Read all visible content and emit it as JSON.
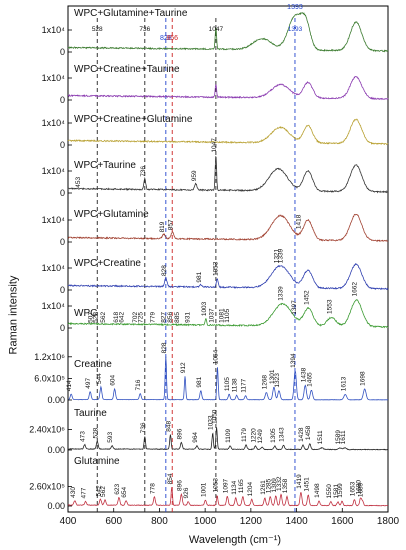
{
  "figure": {
    "xlabel": "Wavelength (cm⁻¹)",
    "ylabel": "Raman intensity"
  },
  "chart_data": {
    "type": "line",
    "xlabel": "Wavelength (cm⁻¹)",
    "ylabel": "Raman intensity",
    "xlim": [
      400,
      1800
    ],
    "xticks": [
      "400",
      "600",
      "800",
      "1000",
      "1200",
      "1400",
      "1600",
      "1800"
    ],
    "grid": false,
    "reference_lines": [
      {
        "x": 528,
        "label": "528",
        "color": "#222222"
      },
      {
        "x": 736,
        "label": "736",
        "color": "#222222"
      },
      {
        "x": 828,
        "label": "828",
        "color": "#2244cc"
      },
      {
        "x": 856,
        "label": "856",
        "color": "#cc2222"
      },
      {
        "x": 1047,
        "label": "1047",
        "color": "#222222"
      },
      {
        "x": 1393,
        "label": "1393",
        "color": "#2244cc"
      }
    ],
    "series": [
      {
        "name": "WPC+Glutamine+Taurine",
        "color": "#3a7a2e",
        "yticks": [
          {
            "label": "0",
            "v": 0
          },
          {
            "label": "1x10⁴",
            "v": 1
          }
        ],
        "peaks": [
          [
            1047,
            1.0,
            3
          ],
          [
            1393,
            1.5,
            30
          ],
          [
            1250,
            0.5,
            40
          ],
          [
            1440,
            1.1,
            20
          ],
          [
            1660,
            1.3,
            25
          ]
        ],
        "labels": [
          {
            "x": 528,
            "text": "528"
          },
          {
            "x": 736,
            "text": "736"
          },
          {
            "x": 1047,
            "text": "1047"
          },
          {
            "x": 1393,
            "text": "1393"
          }
        ]
      },
      {
        "name": "WPC+Creatine+Taurine",
        "color": "#8a3ab0",
        "yticks": [
          {
            "label": "0",
            "v": 0
          },
          {
            "label": "1x10⁴",
            "v": 1
          }
        ],
        "peaks": [
          [
            1047,
            0.6,
            3
          ],
          [
            1330,
            0.6,
            40
          ],
          [
            1450,
            0.7,
            20
          ],
          [
            1660,
            1.0,
            25
          ]
        ],
        "labels": []
      },
      {
        "name": "WPC+Creatine+Glutamine",
        "color": "#b8a030",
        "yticks": [
          {
            "label": "0",
            "v": 0
          },
          {
            "label": "1x10⁴",
            "v": 1
          }
        ],
        "peaks": [
          [
            1330,
            0.7,
            40
          ],
          [
            1450,
            0.8,
            20
          ],
          [
            1660,
            1.1,
            25
          ]
        ],
        "labels": []
      },
      {
        "name": "WPC+Taurine",
        "color": "#333333",
        "yticks": [
          {
            "label": "0",
            "v": 0
          },
          {
            "label": "1x10⁴",
            "v": 1
          }
        ],
        "peaks": [
          [
            1047,
            1.6,
            3
          ],
          [
            959,
            0.3,
            5
          ],
          [
            736,
            0.5,
            4
          ],
          [
            1320,
            1.0,
            40
          ],
          [
            1450,
            0.9,
            20
          ],
          [
            1660,
            1.2,
            25
          ]
        ],
        "labels": [
          {
            "x": 453,
            "text": "453"
          },
          {
            "x": 736,
            "text": "736"
          },
          {
            "x": 959,
            "text": "959"
          },
          {
            "x": 1047,
            "text": "1047"
          }
        ]
      },
      {
        "name": "WPC+Glutamine",
        "color": "#a04030",
        "yticks": [
          {
            "label": "0",
            "v": 0
          },
          {
            "label": "1x10⁴",
            "v": 1
          }
        ],
        "peaks": [
          [
            819,
            0.2,
            6
          ],
          [
            857,
            0.3,
            6
          ],
          [
            1330,
            1.1,
            40
          ],
          [
            1450,
            0.9,
            20
          ],
          [
            1660,
            1.2,
            25
          ]
        ],
        "labels": [
          {
            "x": 819,
            "text": "819"
          },
          {
            "x": 857,
            "text": "857"
          },
          {
            "x": 1418,
            "text": "1418"
          }
        ]
      },
      {
        "name": "WPC+Creatine",
        "color": "#3040b0",
        "yticks": [
          {
            "label": "0",
            "v": 0
          },
          {
            "label": "1x10⁴",
            "v": 1
          }
        ],
        "peaks": [
          [
            828,
            0.4,
            5
          ],
          [
            981,
            0.1,
            5
          ],
          [
            1053,
            0.4,
            4
          ],
          [
            1330,
            1.0,
            40
          ],
          [
            1450,
            0.8,
            20
          ],
          [
            1660,
            1.1,
            25
          ]
        ],
        "labels": [
          {
            "x": 828,
            "text": "828"
          },
          {
            "x": 981,
            "text": "981"
          },
          {
            "x": 1053,
            "text": "1053"
          },
          {
            "x": 1321,
            "text": "1321"
          },
          {
            "x": 1339,
            "text": "1339"
          }
        ]
      },
      {
        "name": "WPC",
        "color": "#3a9a30",
        "yticks": [
          {
            "label": "0",
            "v": 0
          },
          {
            "label": "1x10⁴",
            "v": 1
          }
        ],
        "peaks": [
          [
            1003,
            0.3,
            3
          ],
          [
            1339,
            1.0,
            40
          ],
          [
            1452,
            0.8,
            20
          ],
          [
            1553,
            0.4,
            20
          ],
          [
            1662,
            1.2,
            25
          ]
        ],
        "labels": [
          {
            "x": 507,
            "text": "507"
          },
          {
            "x": 528,
            "text": "528"
          },
          {
            "x": 562,
            "text": "562"
          },
          {
            "x": 618,
            "text": "618"
          },
          {
            "x": 642,
            "text": "642"
          },
          {
            "x": 702,
            "text": "702"
          },
          {
            "x": 725,
            "text": "725"
          },
          {
            "x": 779,
            "text": "779"
          },
          {
            "x": 827,
            "text": "827"
          },
          {
            "x": 856,
            "text": "856"
          },
          {
            "x": 885,
            "text": "885"
          },
          {
            "x": 931,
            "text": "931"
          },
          {
            "x": 1003,
            "text": "1003"
          },
          {
            "x": 1037,
            "text": "1037"
          },
          {
            "x": 1081,
            "text": "1081"
          },
          {
            "x": 1105,
            "text": "1105"
          },
          {
            "x": 1339,
            "text": "1339"
          },
          {
            "x": 1397,
            "text": "1397"
          },
          {
            "x": 1452,
            "text": "1452"
          },
          {
            "x": 1553,
            "text": "1553"
          },
          {
            "x": 1662,
            "text": "1662"
          }
        ]
      },
      {
        "name": "Creatine",
        "color": "#3050c0",
        "yticks": [
          {
            "label": "0.00",
            "v": 0
          },
          {
            "label": "6.0x10⁵",
            "v": 6
          },
          {
            "label": "1.2x10⁶",
            "v": 12
          }
        ],
        "peaks": [
          [
            414,
            1.5,
            4
          ],
          [
            497,
            2.2,
            4
          ],
          [
            544,
            3.5,
            4
          ],
          [
            604,
            3.0,
            4
          ],
          [
            716,
            1.7,
            4
          ],
          [
            828,
            12.0,
            3
          ],
          [
            912,
            6.5,
            3
          ],
          [
            981,
            2.5,
            4
          ],
          [
            1054,
            9.0,
            3
          ],
          [
            1105,
            1.5,
            4
          ],
          [
            1138,
            1.2,
            4
          ],
          [
            1177,
            1.1,
            4
          ],
          [
            1268,
            2.0,
            5
          ],
          [
            1301,
            3.5,
            5
          ],
          [
            1323,
            2.5,
            5
          ],
          [
            1394,
            8.0,
            5
          ],
          [
            1438,
            4.0,
            5
          ],
          [
            1465,
            2.7,
            5
          ],
          [
            1613,
            1.5,
            6
          ],
          [
            1698,
            3.0,
            6
          ]
        ],
        "labels": [
          {
            "x": 414,
            "text": "414"
          },
          {
            "x": 497,
            "text": "497"
          },
          {
            "x": 544,
            "text": "544"
          },
          {
            "x": 604,
            "text": "604"
          },
          {
            "x": 716,
            "text": "716"
          },
          {
            "x": 828,
            "text": "828"
          },
          {
            "x": 912,
            "text": "912"
          },
          {
            "x": 981,
            "text": "981"
          },
          {
            "x": 1054,
            "text": "1054"
          },
          {
            "x": 1105,
            "text": "1105"
          },
          {
            "x": 1138,
            "text": "1138"
          },
          {
            "x": 1177,
            "text": "1177"
          },
          {
            "x": 1268,
            "text": "1268"
          },
          {
            "x": 1301,
            "text": "1301"
          },
          {
            "x": 1323,
            "text": "1323"
          },
          {
            "x": 1394,
            "text": "1394"
          },
          {
            "x": 1438,
            "text": "1438"
          },
          {
            "x": 1465,
            "text": "1465"
          },
          {
            "x": 1613,
            "text": "1613"
          },
          {
            "x": 1698,
            "text": "1698"
          }
        ]
      },
      {
        "name": "Taurine",
        "color": "#222222",
        "yticks": [
          {
            "label": "0.00",
            "v": 0
          },
          {
            "label": "2.40x10⁶",
            "v": 2.4
          }
        ],
        "peaks": [
          [
            473,
            0.5,
            4
          ],
          [
            528,
            0.9,
            4
          ],
          [
            593,
            0.4,
            4
          ],
          [
            736,
            1.5,
            3
          ],
          [
            848,
            1.7,
            3
          ],
          [
            896,
            0.8,
            4
          ],
          [
            964,
            0.4,
            4
          ],
          [
            1033,
            1.9,
            3
          ],
          [
            1050,
            2.6,
            3
          ],
          [
            1109,
            0.4,
            4
          ],
          [
            1179,
            0.5,
            4
          ],
          [
            1220,
            0.4,
            4
          ],
          [
            1249,
            0.3,
            4
          ],
          [
            1305,
            0.4,
            4
          ],
          [
            1343,
            0.5,
            4
          ],
          [
            1428,
            0.5,
            4
          ],
          [
            1458,
            0.7,
            4
          ],
          [
            1511,
            0.2,
            6
          ],
          [
            1589,
            0.2,
            6
          ],
          [
            1611,
            0.2,
            6
          ]
        ],
        "labels": [
          {
            "x": 473,
            "text": "473"
          },
          {
            "x": 528,
            "text": "528"
          },
          {
            "x": 593,
            "text": "593"
          },
          {
            "x": 736,
            "text": "736"
          },
          {
            "x": 848,
            "text": "848"
          },
          {
            "x": 896,
            "text": "896"
          },
          {
            "x": 964,
            "text": "964"
          },
          {
            "x": 1033,
            "text": "1033"
          },
          {
            "x": 1050,
            "text": "1050"
          },
          {
            "x": 1109,
            "text": "1109"
          },
          {
            "x": 1179,
            "text": "1179"
          },
          {
            "x": 1220,
            "text": "1220"
          },
          {
            "x": 1249,
            "text": "1249"
          },
          {
            "x": 1305,
            "text": "1305"
          },
          {
            "x": 1343,
            "text": "1343"
          },
          {
            "x": 1428,
            "text": "1428"
          },
          {
            "x": 1458,
            "text": "1458"
          },
          {
            "x": 1511,
            "text": "1511"
          },
          {
            "x": 1589,
            "text": "1589"
          },
          {
            "x": 1611,
            "text": "1611"
          }
        ]
      },
      {
        "name": "Glutamine",
        "color": "#c03040",
        "yticks": [
          {
            "label": "0.00",
            "v": 0
          },
          {
            "label": "2.60x10⁵",
            "v": 2.6
          }
        ],
        "peaks": [
          [
            430,
            0.6,
            4
          ],
          [
            477,
            0.5,
            4
          ],
          [
            542,
            0.8,
            4
          ],
          [
            562,
            0.7,
            4
          ],
          [
            623,
            1.0,
            4
          ],
          [
            654,
            0.6,
            4
          ],
          [
            778,
            1.1,
            4
          ],
          [
            854,
            2.4,
            3
          ],
          [
            896,
            1.5,
            4
          ],
          [
            926,
            0.5,
            4
          ],
          [
            1001,
            0.7,
            4
          ],
          [
            1053,
            1.3,
            3
          ],
          [
            1097,
            1.2,
            4
          ],
          [
            1134,
            1.0,
            4
          ],
          [
            1165,
            1.2,
            4
          ],
          [
            1204,
            0.8,
            4
          ],
          [
            1261,
            1.0,
            4
          ],
          [
            1285,
            1.2,
            4
          ],
          [
            1309,
            1.3,
            4
          ],
          [
            1332,
            1.5,
            4
          ],
          [
            1358,
            1.2,
            4
          ],
          [
            1419,
            1.8,
            4
          ],
          [
            1451,
            1.4,
            4
          ],
          [
            1498,
            0.6,
            4
          ],
          [
            1550,
            0.5,
            4
          ],
          [
            1581,
            0.5,
            4
          ],
          [
            1599,
            0.6,
            4
          ],
          [
            1653,
            0.8,
            4
          ],
          [
            1680,
            1.0,
            4
          ],
          [
            1689,
            0.6,
            4
          ]
        ],
        "labels": [
          {
            "x": 430,
            "text": "430"
          },
          {
            "x": 477,
            "text": "477"
          },
          {
            "x": 542,
            "text": "542"
          },
          {
            "x": 562,
            "text": "562"
          },
          {
            "x": 623,
            "text": "623"
          },
          {
            "x": 654,
            "text": "654"
          },
          {
            "x": 778,
            "text": "778"
          },
          {
            "x": 854,
            "text": "854"
          },
          {
            "x": 896,
            "text": "896"
          },
          {
            "x": 926,
            "text": "926"
          },
          {
            "x": 1001,
            "text": "1001"
          },
          {
            "x": 1053,
            "text": "1053"
          },
          {
            "x": 1097,
            "text": "1097"
          },
          {
            "x": 1134,
            "text": "1134"
          },
          {
            "x": 1165,
            "text": "1165"
          },
          {
            "x": 1204,
            "text": "1204"
          },
          {
            "x": 1261,
            "text": "1261"
          },
          {
            "x": 1285,
            "text": "1285"
          },
          {
            "x": 1309,
            "text": "1309"
          },
          {
            "x": 1332,
            "text": "1332"
          },
          {
            "x": 1358,
            "text": "1358"
          },
          {
            "x": 1419,
            "text": "1419"
          },
          {
            "x": 1451,
            "text": "1451"
          },
          {
            "x": 1498,
            "text": "1498"
          },
          {
            "x": 1550,
            "text": "1550"
          },
          {
            "x": 1581,
            "text": "1581"
          },
          {
            "x": 1599,
            "text": "1599"
          },
          {
            "x": 1653,
            "text": "1653"
          },
          {
            "x": 1680,
            "text": "1680"
          },
          {
            "x": 1689,
            "text": "1689"
          }
        ]
      }
    ]
  }
}
